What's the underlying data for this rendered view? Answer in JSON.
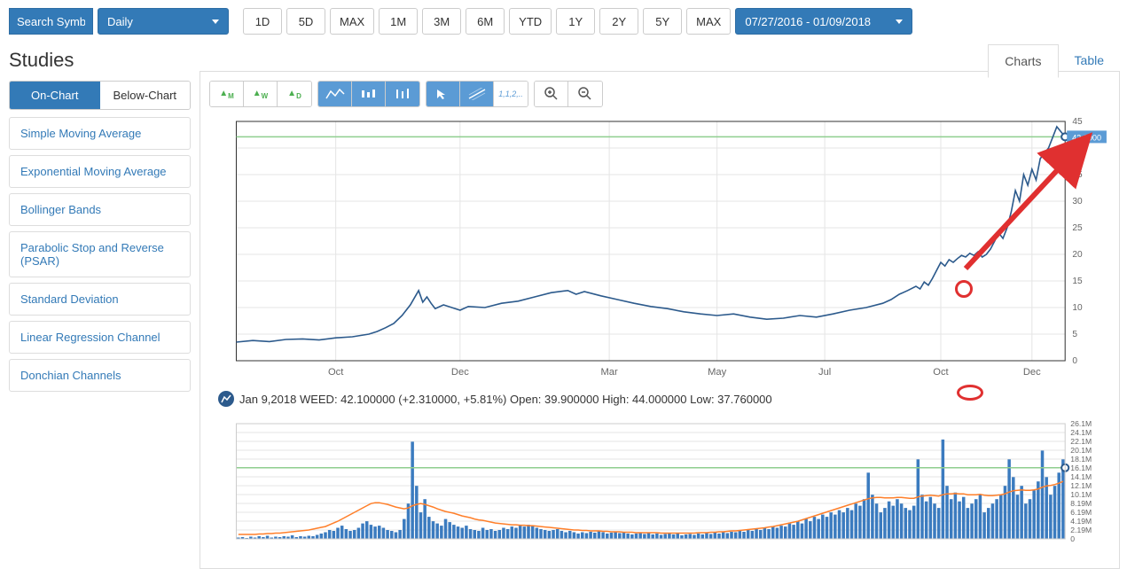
{
  "search": {
    "placeholder": "Search Symbol"
  },
  "interval": {
    "selected": "Daily"
  },
  "ranges": [
    "1D",
    "5D",
    "MAX",
    "1M",
    "3M",
    "6M",
    "YTD",
    "1Y",
    "2Y",
    "5Y",
    "MAX"
  ],
  "date_range": "07/27/2016 - 01/09/2018",
  "sidebar": {
    "title": "Studies",
    "tabs": [
      {
        "label": "On-Chart",
        "active": true
      },
      {
        "label": "Below-Chart",
        "active": false
      }
    ],
    "items": [
      "Simple Moving Average",
      "Exponential Moving Average",
      "Bollinger Bands",
      "Parabolic Stop and Reverse (PSAR)",
      "Standard Deviation",
      "Linear Regression Channel",
      "Donchian Channels"
    ]
  },
  "main_tabs": [
    {
      "label": "Charts",
      "active": true
    },
    {
      "label": "Table",
      "active": false
    }
  ],
  "price_chart": {
    "type": "line",
    "line_color": "#2c5a8c",
    "line_width": 1.6,
    "bg": "#ffffff",
    "grid_color": "#e5e5e5",
    "axis_color": "#333333",
    "ylim": [
      0,
      45
    ],
    "ytick_step": 5,
    "yticks": [
      0,
      5,
      10,
      15,
      20,
      25,
      30,
      35,
      40,
      45
    ],
    "xticks": [
      "Oct",
      "Dec",
      "Mar",
      "May",
      "Jul",
      "Oct",
      "Dec"
    ],
    "xticks_pos": [
      0.12,
      0.27,
      0.45,
      0.58,
      0.71,
      0.85,
      0.96
    ],
    "current_price": 42.1,
    "current_price_label": "42.1000",
    "guide_line_color": "#8fce8f",
    "data": [
      [
        0.0,
        3.5
      ],
      [
        0.02,
        3.8
      ],
      [
        0.04,
        3.6
      ],
      [
        0.06,
        4.0
      ],
      [
        0.08,
        4.1
      ],
      [
        0.1,
        3.9
      ],
      [
        0.12,
        4.3
      ],
      [
        0.14,
        4.5
      ],
      [
        0.16,
        5.0
      ],
      [
        0.17,
        5.5
      ],
      [
        0.18,
        6.2
      ],
      [
        0.19,
        7.0
      ],
      [
        0.2,
        8.5
      ],
      [
        0.21,
        10.5
      ],
      [
        0.22,
        13.2
      ],
      [
        0.225,
        11.0
      ],
      [
        0.23,
        12.0
      ],
      [
        0.235,
        10.8
      ],
      [
        0.24,
        9.8
      ],
      [
        0.25,
        10.5
      ],
      [
        0.26,
        10.0
      ],
      [
        0.27,
        9.5
      ],
      [
        0.28,
        10.2
      ],
      [
        0.3,
        10.0
      ],
      [
        0.32,
        10.8
      ],
      [
        0.34,
        11.2
      ],
      [
        0.36,
        12.0
      ],
      [
        0.38,
        12.8
      ],
      [
        0.4,
        13.2
      ],
      [
        0.41,
        12.5
      ],
      [
        0.42,
        13.0
      ],
      [
        0.44,
        12.2
      ],
      [
        0.46,
        11.5
      ],
      [
        0.48,
        10.8
      ],
      [
        0.5,
        10.2
      ],
      [
        0.52,
        9.8
      ],
      [
        0.54,
        9.2
      ],
      [
        0.56,
        8.8
      ],
      [
        0.58,
        8.5
      ],
      [
        0.6,
        8.8
      ],
      [
        0.62,
        8.2
      ],
      [
        0.64,
        7.8
      ],
      [
        0.66,
        8.0
      ],
      [
        0.68,
        8.5
      ],
      [
        0.7,
        8.2
      ],
      [
        0.72,
        8.8
      ],
      [
        0.74,
        9.5
      ],
      [
        0.76,
        10.0
      ],
      [
        0.78,
        10.8
      ],
      [
        0.79,
        11.5
      ],
      [
        0.8,
        12.5
      ],
      [
        0.81,
        13.2
      ],
      [
        0.82,
        14.0
      ],
      [
        0.825,
        13.5
      ],
      [
        0.83,
        14.8
      ],
      [
        0.835,
        14.2
      ],
      [
        0.84,
        15.5
      ],
      [
        0.845,
        17.0
      ],
      [
        0.85,
        18.5
      ],
      [
        0.855,
        17.8
      ],
      [
        0.86,
        19.0
      ],
      [
        0.865,
        18.5
      ],
      [
        0.87,
        19.2
      ],
      [
        0.875,
        19.8
      ],
      [
        0.88,
        19.5
      ],
      [
        0.885,
        20.2
      ],
      [
        0.89,
        19.8
      ],
      [
        0.895,
        20.5
      ],
      [
        0.9,
        19.5
      ],
      [
        0.905,
        20.0
      ],
      [
        0.91,
        21.0
      ],
      [
        0.915,
        22.5
      ],
      [
        0.92,
        24.0
      ],
      [
        0.925,
        23.0
      ],
      [
        0.93,
        25.0
      ],
      [
        0.935,
        28.0
      ],
      [
        0.94,
        32.0
      ],
      [
        0.945,
        30.0
      ],
      [
        0.95,
        35.0
      ],
      [
        0.955,
        33.0
      ],
      [
        0.96,
        36.0
      ],
      [
        0.965,
        34.0
      ],
      [
        0.97,
        38.0
      ],
      [
        0.98,
        40.0
      ],
      [
        0.99,
        44.0
      ],
      [
        1.0,
        42.1
      ]
    ],
    "info_line": "Jan 9,2018 WEED: 42.100000 (+2.310000, +5.81%) Open: 39.900000 High: 44.000000 Low: 37.760000"
  },
  "vol_chart": {
    "type": "bar",
    "bar_color": "#3b7bbf",
    "ma_color": "#ff7f2a",
    "grid_color": "#e5e5e5",
    "bg": "#ffffff",
    "guide_line_color": "#8fce8f",
    "guide_y": 16.1,
    "ylim": [
      0,
      26.1
    ],
    "yticks": [
      "26.1M",
      "24.1M",
      "22.1M",
      "20.1M",
      "18.1M",
      "16.1M",
      "14.1M",
      "12.1M",
      "10.1M",
      "8.19M",
      "6.19M",
      "4.19M",
      "2.19M",
      "0"
    ],
    "bars_n": 200,
    "bars": [
      0.3,
      0.4,
      0.2,
      0.5,
      0.3,
      0.6,
      0.4,
      0.7,
      0.3,
      0.5,
      0.4,
      0.6,
      0.5,
      0.8,
      0.4,
      0.6,
      0.5,
      0.7,
      0.6,
      0.9,
      1.2,
      1.5,
      2.0,
      1.8,
      2.5,
      3.0,
      2.2,
      1.8,
      2.0,
      2.5,
      3.5,
      4.0,
      3.2,
      2.8,
      3.0,
      2.5,
      2.0,
      1.8,
      1.5,
      2.0,
      4.5,
      8.0,
      22.0,
      12.0,
      6.0,
      9.0,
      5.0,
      4.0,
      3.5,
      3.0,
      4.5,
      3.8,
      3.2,
      2.8,
      2.5,
      3.0,
      2.2,
      2.0,
      1.8,
      2.5,
      2.0,
      2.2,
      1.8,
      2.0,
      2.5,
      2.2,
      2.8,
      2.5,
      3.0,
      2.8,
      3.2,
      3.0,
      2.5,
      2.2,
      2.0,
      1.8,
      2.0,
      2.2,
      1.8,
      1.5,
      1.8,
      1.5,
      1.2,
      1.5,
      1.3,
      1.6,
      1.4,
      1.8,
      1.5,
      1.2,
      1.4,
      1.6,
      1.3,
      1.5,
      1.2,
      1.0,
      1.2,
      1.4,
      1.1,
      1.3,
      1.0,
      1.2,
      0.9,
      1.1,
      1.3,
      1.0,
      1.2,
      0.8,
      1.0,
      1.1,
      0.9,
      1.2,
      1.0,
      1.3,
      1.1,
      1.4,
      1.2,
      1.5,
      1.3,
      1.6,
      1.5,
      1.8,
      1.6,
      2.0,
      1.8,
      2.2,
      2.0,
      2.5,
      2.2,
      2.8,
      2.5,
      3.0,
      2.8,
      3.5,
      3.2,
      4.0,
      3.5,
      4.5,
      4.0,
      5.0,
      4.5,
      5.5,
      5.0,
      6.0,
      5.5,
      6.5,
      6.0,
      7.0,
      6.5,
      8.0,
      7.5,
      9.0,
      15.0,
      10.0,
      8.0,
      6.0,
      7.0,
      8.5,
      7.5,
      9.0,
      8.0,
      7.0,
      6.5,
      7.5,
      18.0,
      10.0,
      8.5,
      9.5,
      8.0,
      7.0,
      22.5,
      12.0,
      9.0,
      10.5,
      8.5,
      9.5,
      7.0,
      8.0,
      9.0,
      10.0,
      6.0,
      7.0,
      8.0,
      9.0,
      10.0,
      12.0,
      18.0,
      14.0,
      10.0,
      12.0,
      8.0,
      9.0,
      11.0,
      13.0,
      20.0,
      14.0,
      10.0,
      12.0,
      15.0,
      18.0
    ],
    "ma": [
      1.0,
      1.0,
      1.0,
      1.0,
      1.0,
      1.1,
      1.1,
      1.2,
      1.2,
      1.3,
      1.3,
      1.4,
      1.5,
      1.6,
      1.7,
      1.8,
      1.9,
      2.0,
      2.2,
      2.4,
      2.6,
      2.8,
      3.2,
      3.6,
      4.0,
      4.5,
      5.0,
      5.5,
      6.0,
      6.5,
      7.0,
      7.5,
      8.0,
      8.2,
      8.2,
      8.0,
      7.8,
      7.5,
      7.2,
      7.0,
      6.8,
      7.0,
      7.5,
      7.8,
      8.0,
      7.8,
      7.5,
      7.2,
      6.8,
      6.5,
      6.2,
      6.0,
      5.8,
      5.5,
      5.2,
      5.0,
      4.8,
      4.5,
      4.3,
      4.2,
      4.0,
      3.8,
      3.6,
      3.5,
      3.4,
      3.3,
      3.2,
      3.2,
      3.1,
      3.1,
      3.0,
      3.0,
      2.9,
      2.8,
      2.7,
      2.6,
      2.5,
      2.4,
      2.3,
      2.2,
      2.1,
      2.0,
      2.0,
      1.9,
      1.9,
      1.8,
      1.8,
      1.8,
      1.7,
      1.7,
      1.6,
      1.6,
      1.6,
      1.5,
      1.5,
      1.5,
      1.4,
      1.4,
      1.4,
      1.4,
      1.4,
      1.4,
      1.3,
      1.3,
      1.3,
      1.3,
      1.3,
      1.3,
      1.3,
      1.3,
      1.3,
      1.4,
      1.4,
      1.4,
      1.5,
      1.5,
      1.6,
      1.6,
      1.7,
      1.8,
      1.8,
      1.9,
      2.0,
      2.1,
      2.2,
      2.3,
      2.4,
      2.5,
      2.7,
      2.8,
      3.0,
      3.2,
      3.4,
      3.6,
      3.8,
      4.0,
      4.3,
      4.6,
      4.9,
      5.2,
      5.5,
      5.8,
      6.1,
      6.4,
      6.7,
      7.0,
      7.3,
      7.6,
      7.9,
      8.2,
      8.5,
      8.8,
      9.1,
      9.3,
      9.4,
      9.4,
      9.3,
      9.3,
      9.3,
      9.4,
      9.4,
      9.3,
      9.2,
      9.2,
      9.5,
      9.7,
      9.8,
      9.9,
      9.8,
      9.7,
      10.0,
      10.2,
      10.2,
      10.3,
      10.2,
      10.2,
      10.0,
      10.0,
      10.0,
      10.1,
      9.9,
      9.8,
      9.8,
      9.9,
      10.0,
      10.2,
      10.6,
      10.9,
      11.0,
      11.1,
      11.0,
      11.0,
      11.1,
      11.3,
      11.7,
      12.0,
      12.1,
      12.3,
      12.6,
      13.0
    ]
  },
  "colors": {
    "brand": "#337ab7",
    "link": "#337ab7"
  }
}
